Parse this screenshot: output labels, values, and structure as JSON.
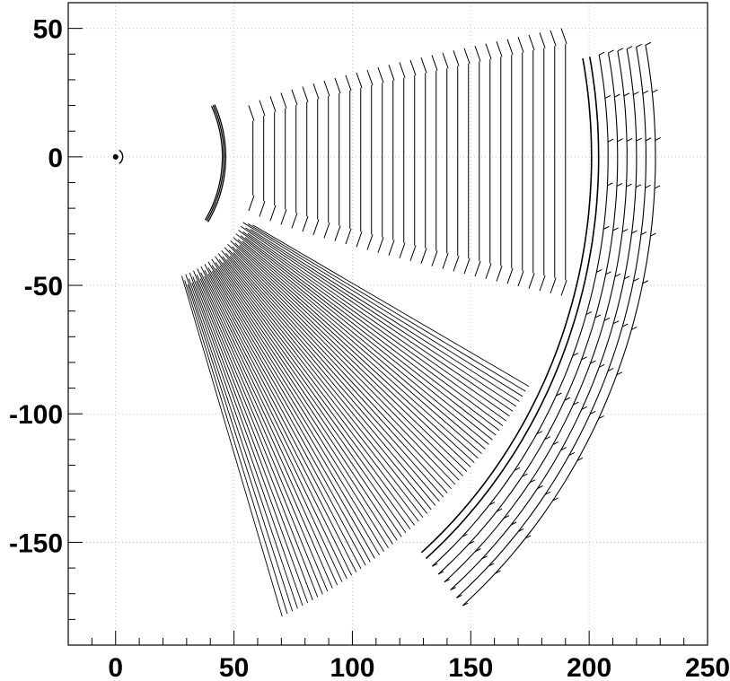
{
  "chart_data": {
    "type": "scatter",
    "title": "",
    "xlabel": "",
    "ylabel": "",
    "xlim": [
      -20,
      250
    ],
    "ylim": [
      -190,
      60
    ],
    "grid": true,
    "marker_color": "#000000",
    "grid_color": "#c8c8c8",
    "x_ticks": [
      {
        "value": 0,
        "label": "0"
      },
      {
        "value": 50,
        "label": "50"
      },
      {
        "value": 100,
        "label": "100"
      },
      {
        "value": 150,
        "label": "150"
      },
      {
        "value": 200,
        "label": "200"
      },
      {
        "value": 250,
        "label": "250"
      }
    ],
    "y_ticks": [
      {
        "value": 50,
        "label": "50"
      },
      {
        "value": 0,
        "label": "0"
      },
      {
        "value": -50,
        "label": "-50"
      },
      {
        "value": -100,
        "label": "-100"
      },
      {
        "value": -150,
        "label": "-150"
      }
    ],
    "minor_tick_step": 10,
    "series": [
      {
        "structure": "beam-spot",
        "points": [
          [
            0,
            0
          ]
        ]
      },
      {
        "structure": "inner-arc",
        "center": [
          0,
          0
        ],
        "radius": 46.5,
        "angle_range_deg": [
          -33,
          26
        ]
      },
      {
        "structure": "upper-fan-strips",
        "x_start": 58,
        "x_end": 190,
        "count": 30,
        "y_inner_top": 14,
        "y_inner_bottom": -15,
        "y_outer_top": 44,
        "y_outer_bottom": -48
      },
      {
        "structure": "lower-fan-strips",
        "count": 60,
        "r_inner": 49,
        "r_outer": 205,
        "angle_range_deg": [
          -71,
          -30
        ]
      },
      {
        "structure": "outer-shells",
        "center": [
          0,
          0
        ],
        "radii": [
          201,
          204,
          208,
          212,
          216,
          220,
          224,
          228
        ],
        "angle_range_deg": [
          -50,
          11
        ]
      }
    ]
  }
}
